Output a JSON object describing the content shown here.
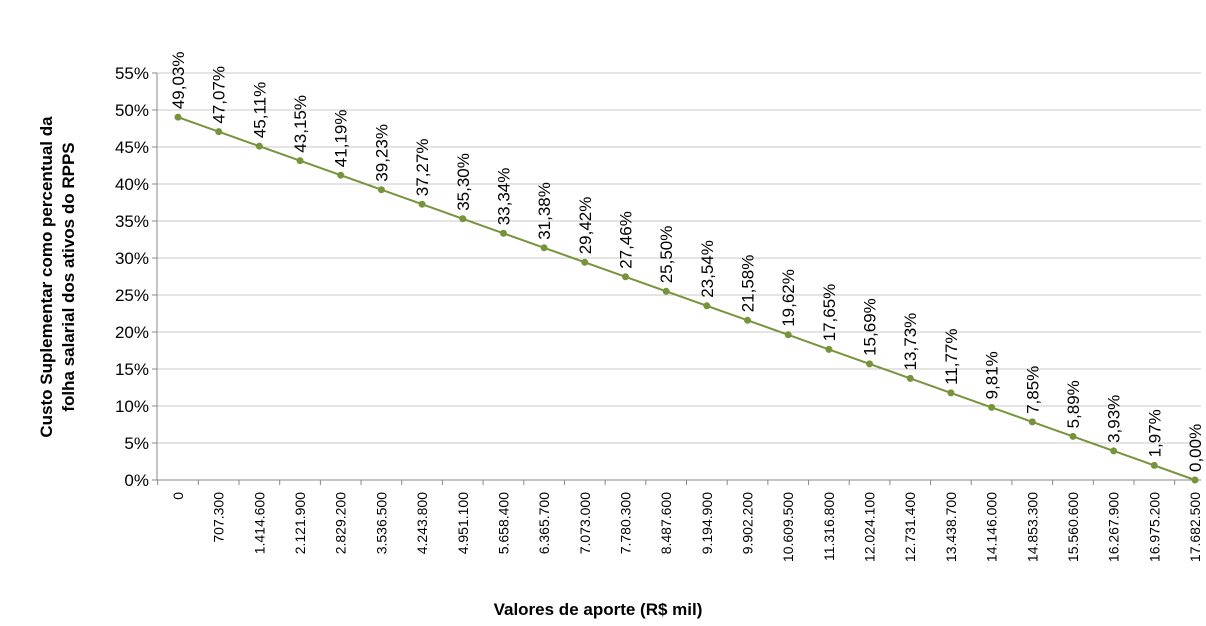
{
  "chart_data": {
    "type": "line",
    "xlabel": "Valores de aporte (R$ mil)",
    "ylabel": [
      "Custo Suplementar como percentual da",
      "folha salarial dos ativos do RPPS"
    ],
    "categories": [
      "0",
      "707.300",
      "1.414.600",
      "2.121.900",
      "2.829.200",
      "3.536.500",
      "4.243.800",
      "4.951.100",
      "5.658.400",
      "6.365.700",
      "7.073.000",
      "7.780.300",
      "8.487.600",
      "9.194.900",
      "9.902.200",
      "10.609.500",
      "11.316.800",
      "12.024.100",
      "12.731.400",
      "13.438.700",
      "14.146.000",
      "14.853.300",
      "15.560.600",
      "16.267.900",
      "16.975.200",
      "17.682.500"
    ],
    "series": [
      {
        "color": "#77933c",
        "values": [
          49.03,
          47.07,
          45.11,
          43.15,
          41.19,
          39.23,
          37.27,
          35.3,
          33.34,
          31.38,
          29.42,
          27.46,
          25.5,
          23.54,
          21.58,
          19.62,
          17.65,
          15.69,
          13.73,
          11.77,
          9.81,
          7.85,
          5.89,
          3.93,
          1.97,
          0.0
        ],
        "value_labels": [
          "49,03%",
          "47,07%",
          "45,11%",
          "43,15%",
          "41,19%",
          "39,23%",
          "37,27%",
          "35,30%",
          "33,34%",
          "31,38%",
          "29,42%",
          "27,46%",
          "25,50%",
          "23,54%",
          "21,58%",
          "19,62%",
          "17,65%",
          "15,69%",
          "13,73%",
          "11,77%",
          "9,81%",
          "7,85%",
          "5,89%",
          "3,93%",
          "1,97%",
          "0,00%"
        ]
      }
    ],
    "ylim": [
      0,
      55
    ],
    "yticks": [
      {
        "value": 0,
        "label": "0%"
      },
      {
        "value": 5,
        "label": "5%"
      },
      {
        "value": 10,
        "label": "10%"
      },
      {
        "value": 15,
        "label": "15%"
      },
      {
        "value": 20,
        "label": "20%"
      },
      {
        "value": 25,
        "label": "25%"
      },
      {
        "value": 30,
        "label": "30%"
      },
      {
        "value": 35,
        "label": "35%"
      },
      {
        "value": 40,
        "label": "40%"
      },
      {
        "value": 45,
        "label": "45%"
      },
      {
        "value": 50,
        "label": "50%"
      },
      {
        "value": 55,
        "label": "55%"
      }
    ],
    "grid": true
  }
}
